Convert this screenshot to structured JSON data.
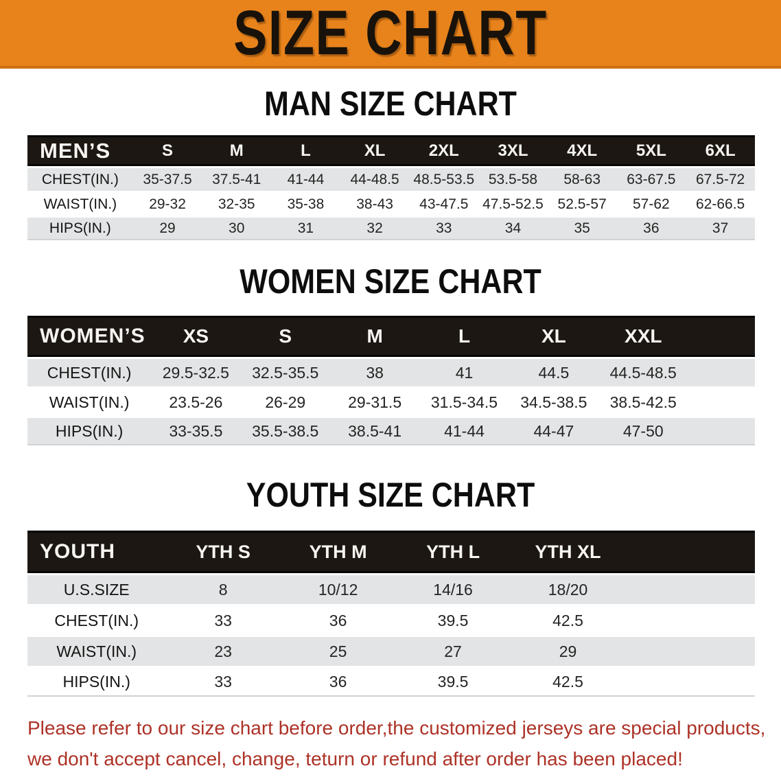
{
  "banner": {
    "title": "SIZE CHART"
  },
  "sections": [
    {
      "heading": "MAN SIZE CHART",
      "table": {
        "corner_label": "MEN’S",
        "columns": [
          "S",
          "M",
          "L",
          "XL",
          "2XL",
          "3XL",
          "4XL",
          "5XL",
          "6XL"
        ],
        "rows": [
          {
            "label": "CHEST(IN.)",
            "values": [
              "35-37.5",
              "37.5-41",
              "41-44",
              "44-48.5",
              "48.5-53.5",
              "53.5-58",
              "58-63",
              "63-67.5",
              "67.5-72"
            ]
          },
          {
            "label": "WAIST(IN.)",
            "values": [
              "29-32",
              "32-35",
              "35-38",
              "38-43",
              "43-47.5",
              "47.5-52.5",
              "52.5-57",
              "57-62",
              "62-66.5"
            ]
          },
          {
            "label": "HIPS(IN.)",
            "values": [
              "29",
              "30",
              "31",
              "32",
              "33",
              "34",
              "35",
              "36",
              "37"
            ]
          }
        ]
      }
    },
    {
      "heading": "WOMEN SIZE CHART",
      "table": {
        "corner_label": "WOMEN’S",
        "columns": [
          "XS",
          "S",
          "M",
          "L",
          "XL",
          "XXL"
        ],
        "rows": [
          {
            "label": "CHEST(IN.)",
            "values": [
              "29.5-32.5",
              "32.5-35.5",
              "38",
              "41",
              "44.5",
              "44.5-48.5"
            ]
          },
          {
            "label": "WAIST(IN.)",
            "values": [
              "23.5-26",
              "26-29",
              "29-31.5",
              "31.5-34.5",
              "34.5-38.5",
              "38.5-42.5"
            ]
          },
          {
            "label": "HIPS(IN.)",
            "values": [
              "33-35.5",
              "35.5-38.5",
              "38.5-41",
              "41-44",
              "44-47",
              "47-50"
            ]
          }
        ]
      }
    },
    {
      "heading": "YOUTH SIZE CHART",
      "table": {
        "corner_label": "YOUTH",
        "columns": [
          "YTH S",
          "YTH M",
          "YTH L",
          "YTH XL"
        ],
        "rows": [
          {
            "label": "U.S.SIZE",
            "values": [
              "8",
              "10/12",
              "14/16",
              "18/20"
            ]
          },
          {
            "label": "CHEST(IN.)",
            "values": [
              "33",
              "36",
              "39.5",
              "42.5"
            ]
          },
          {
            "label": "WAIST(IN.)",
            "values": [
              "23",
              "25",
              "27",
              "29"
            ]
          },
          {
            "label": "HIPS(IN.)",
            "values": [
              "33",
              "36",
              "39.5",
              "42.5"
            ]
          }
        ]
      }
    }
  ],
  "disclaimer": {
    "line1": "Please refer to our size chart before order,the customized jerseys are special products,",
    "line2": "we don't accept cancel, change, teturn or refund after order has been placed!"
  },
  "colors": {
    "banner_bg": "#E8831C",
    "banner_text": "#18120A",
    "table_header_bg": "#1C1713",
    "table_header_text": "#F7F5F2",
    "row_alt_bg": "#E3E4E5",
    "disclaimer_text": "#AD3227"
  }
}
